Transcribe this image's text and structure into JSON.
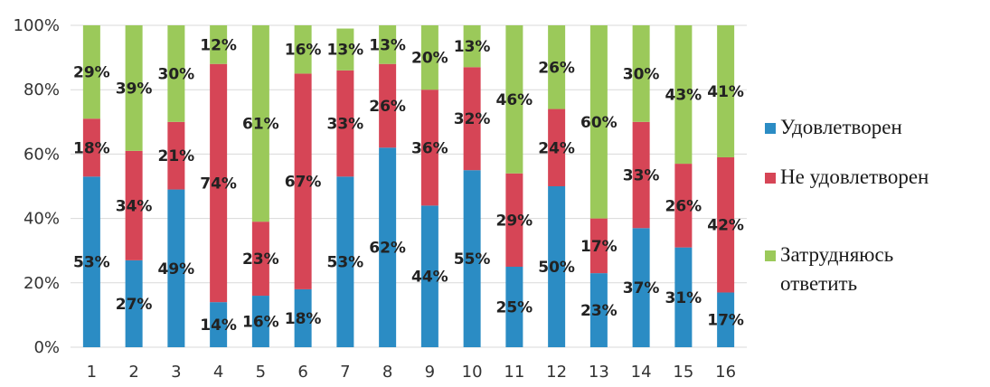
{
  "chart_data": {
    "type": "bar",
    "stacked": true,
    "categories": [
      "1",
      "2",
      "3",
      "4",
      "5",
      "6",
      "7",
      "8",
      "9",
      "10",
      "11",
      "12",
      "13",
      "14",
      "15",
      "16"
    ],
    "series": [
      {
        "name": "Удовлетворен",
        "color": "#2b8cc4",
        "values": [
          53,
          27,
          49,
          14,
          16,
          18,
          53,
          62,
          44,
          55,
          25,
          50,
          23,
          37,
          31,
          17
        ],
        "labels": [
          "53%",
          "27%",
          "49%",
          "14%",
          "16%",
          "18%",
          "53%",
          "62%",
          "44%",
          "55%",
          "25%",
          "50%",
          "23%",
          "37%",
          "31%",
          "17%"
        ]
      },
      {
        "name": "Не удовлетворен",
        "color": "#d64556",
        "values": [
          18,
          34,
          21,
          74,
          23,
          67,
          33,
          26,
          36,
          32,
          29,
          24,
          17,
          33,
          26,
          42
        ],
        "labels": [
          "18%",
          "34%",
          "21%",
          "74%",
          "23%",
          "67%",
          "33%",
          "26%",
          "36%",
          "32%",
          "29%",
          "24%",
          "17%",
          "33%",
          "26%",
          "42%"
        ]
      },
      {
        "name_lines": [
          "Затрудняюсь",
          "ответить"
        ],
        "color": "#9bc95a",
        "values": [
          29,
          39,
          30,
          12,
          61,
          16,
          13,
          13,
          20,
          13,
          46,
          26,
          60,
          30,
          43,
          41
        ],
        "labels": [
          "29%",
          "39%",
          "30%",
          "12%",
          "61%",
          "16%",
          "13%",
          "13%",
          "20%",
          "13%",
          "46%",
          "26%",
          "60%",
          "30%",
          "43%",
          "41%"
        ]
      }
    ],
    "ylim": [
      0,
      100
    ],
    "yticks": [
      0,
      20,
      40,
      60,
      80,
      100
    ],
    "ytick_labels": [
      "0%",
      "20%",
      "40%",
      "60%",
      "80%",
      "100%"
    ],
    "grid": true,
    "legend_position": "right"
  }
}
